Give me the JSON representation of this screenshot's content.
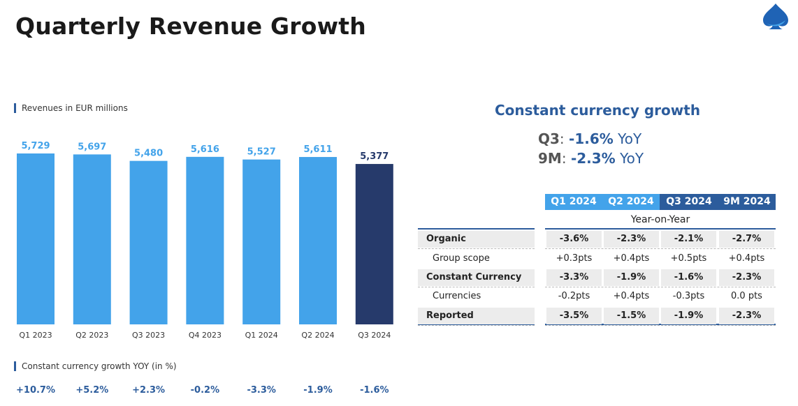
{
  "page": {
    "title": "Quarterly Revenue Growth"
  },
  "colors": {
    "bar": "#43a3ea",
    "bar_highlight": "#263a6b",
    "accent": "#2c5c9c",
    "label": "#43a3ea"
  },
  "chart_data": {
    "type": "bar",
    "title": "Revenues in EUR millions",
    "categories": [
      "Q1 2023",
      "Q2 2023",
      "Q3 2023",
      "Q4 2023",
      "Q1 2024",
      "Q2 2024",
      "Q3 2024"
    ],
    "values": [
      5729,
      5697,
      5480,
      5616,
      5527,
      5611,
      5377
    ],
    "value_labels": [
      "5,729",
      "5,697",
      "5,480",
      "5,616",
      "5,527",
      "5,611",
      "5,377"
    ],
    "highlight_index": 6,
    "xlabel": "",
    "ylabel": ""
  },
  "yoy": {
    "label": "Constant currency growth YOY (in %)",
    "values": [
      "+10.7%",
      "+5.2%",
      "+2.3%",
      "-0.2%",
      "-3.3%",
      "-1.9%",
      "-1.6%"
    ]
  },
  "summary": {
    "heading": "Constant currency growth",
    "lines": [
      {
        "label": "Q3",
        "value": "-1.6%",
        "unit": "YoY"
      },
      {
        "label": "9M",
        "value": "-2.3%",
        "unit": "YoY"
      }
    ]
  },
  "table": {
    "columns": [
      "Q1 2024",
      "Q2 2024",
      "Q3 2024",
      "9M 2024"
    ],
    "caption": "Year-on-Year",
    "rows": [
      {
        "label": "Organic",
        "bold": true,
        "values": [
          "-3.6%",
          "-2.3%",
          "-2.1%",
          "-2.7%"
        ]
      },
      {
        "label": "Group scope",
        "bold": false,
        "values": [
          "+0.3pts",
          "+0.4pts",
          "+0.5pts",
          "+0.4pts"
        ]
      },
      {
        "label": "Constant Currency",
        "bold": true,
        "values": [
          "-3.3%",
          "-1.9%",
          "-1.6%",
          "-2.3%"
        ]
      },
      {
        "label": "Currencies",
        "bold": false,
        "values": [
          "-0.2pts",
          "+0.4pts",
          "-0.3pts",
          "0.0 pts"
        ]
      },
      {
        "label": "Reported",
        "bold": true,
        "values": [
          "-3.5%",
          "-1.5%",
          "-1.9%",
          "-2.3%"
        ]
      }
    ]
  }
}
